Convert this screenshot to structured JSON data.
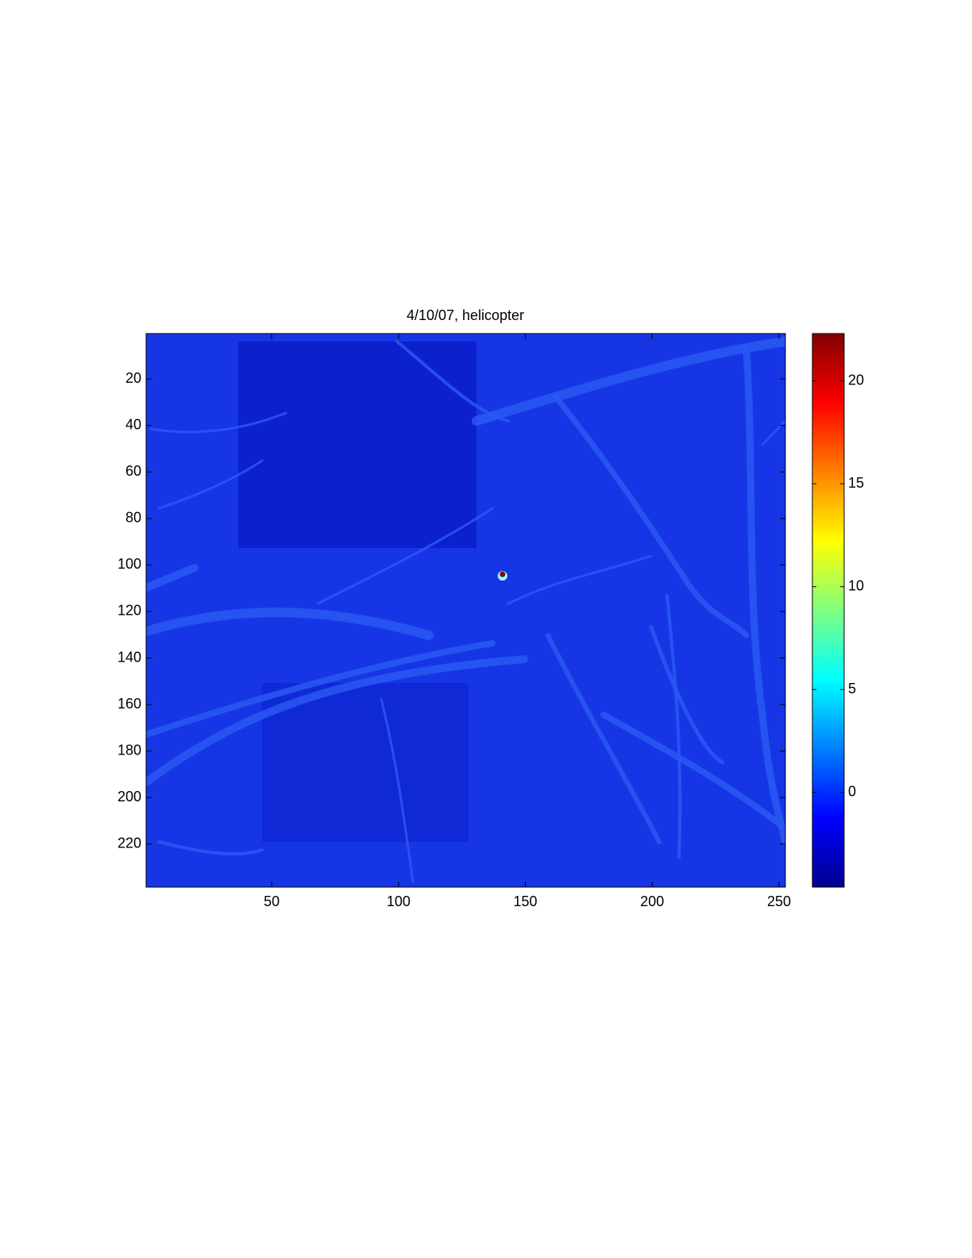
{
  "chart_data": {
    "type": "heatmap",
    "title": "4/10/07, helicopter",
    "xlim": [
      0.5,
      252.5
    ],
    "xticks": [
      50,
      100,
      150,
      200,
      250
    ],
    "ylim": [
      0.5,
      238.5
    ],
    "yticks": [
      20,
      40,
      60,
      80,
      100,
      120,
      140,
      160,
      180,
      200,
      220
    ],
    "clim": [
      -4.6,
      22.3
    ],
    "cticks": [
      0,
      5,
      10,
      15,
      20
    ],
    "peak": {
      "x": 141,
      "y": 104,
      "value": 22
    }
  }
}
